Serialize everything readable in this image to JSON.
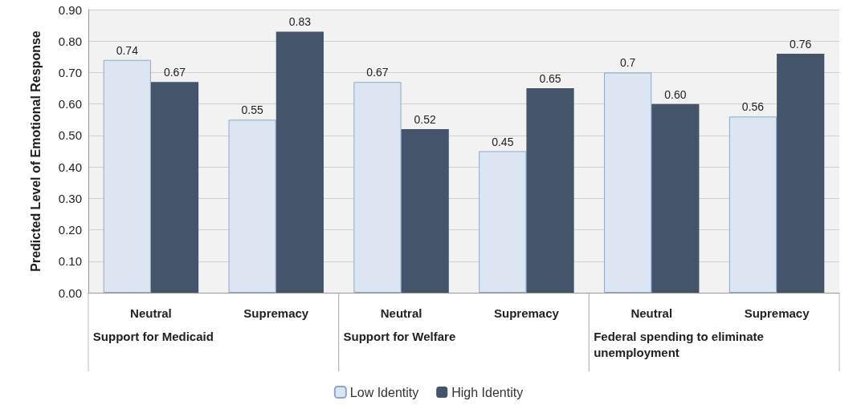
{
  "chart_data": {
    "type": "bar",
    "ylabel": "Predicted Level of Emotional Response",
    "categories": [
      "Neutral",
      "Supremacy",
      "Neutral",
      "Supremacy",
      "Neutral",
      "Supremacy"
    ],
    "series": [
      {
        "name": "Low Identity",
        "color": "#dce6f2",
        "values": [
          0.74,
          0.55,
          0.67,
          0.45,
          0.7,
          0.56
        ],
        "value_labels": [
          "0.74",
          "0.55",
          "0.67",
          "0.45",
          "0.7",
          "0.56"
        ]
      },
      {
        "name": "High Identity",
        "color": "#44546a",
        "values": [
          0.67,
          0.83,
          0.52,
          0.65,
          0.6,
          0.76
        ],
        "value_labels": [
          "0.67",
          "0.83",
          "0.52",
          "0.65",
          "0.60",
          "0.76"
        ]
      }
    ],
    "annotations": [
      "Support for Medicaid",
      "Support for Welfare",
      "Federal spending to eliminate unemployment"
    ],
    "ylim": [
      0,
      0.9
    ],
    "yticks": [
      {
        "value": 0,
        "label": "0.00"
      },
      {
        "value": 0.1,
        "label": "0.10"
      },
      {
        "value": 0.2,
        "label": "0.20"
      },
      {
        "value": 0.3,
        "label": "0.30"
      },
      {
        "value": 0.4,
        "label": "0.40"
      },
      {
        "value": 0.5,
        "label": "0.50"
      },
      {
        "value": 0.6,
        "label": "0.60"
      },
      {
        "value": 0.7,
        "label": "0.70"
      },
      {
        "value": 0.8,
        "label": "0.80"
      },
      {
        "value": 0.9,
        "label": "0.90"
      }
    ],
    "grid": true,
    "legend": "bottom"
  }
}
